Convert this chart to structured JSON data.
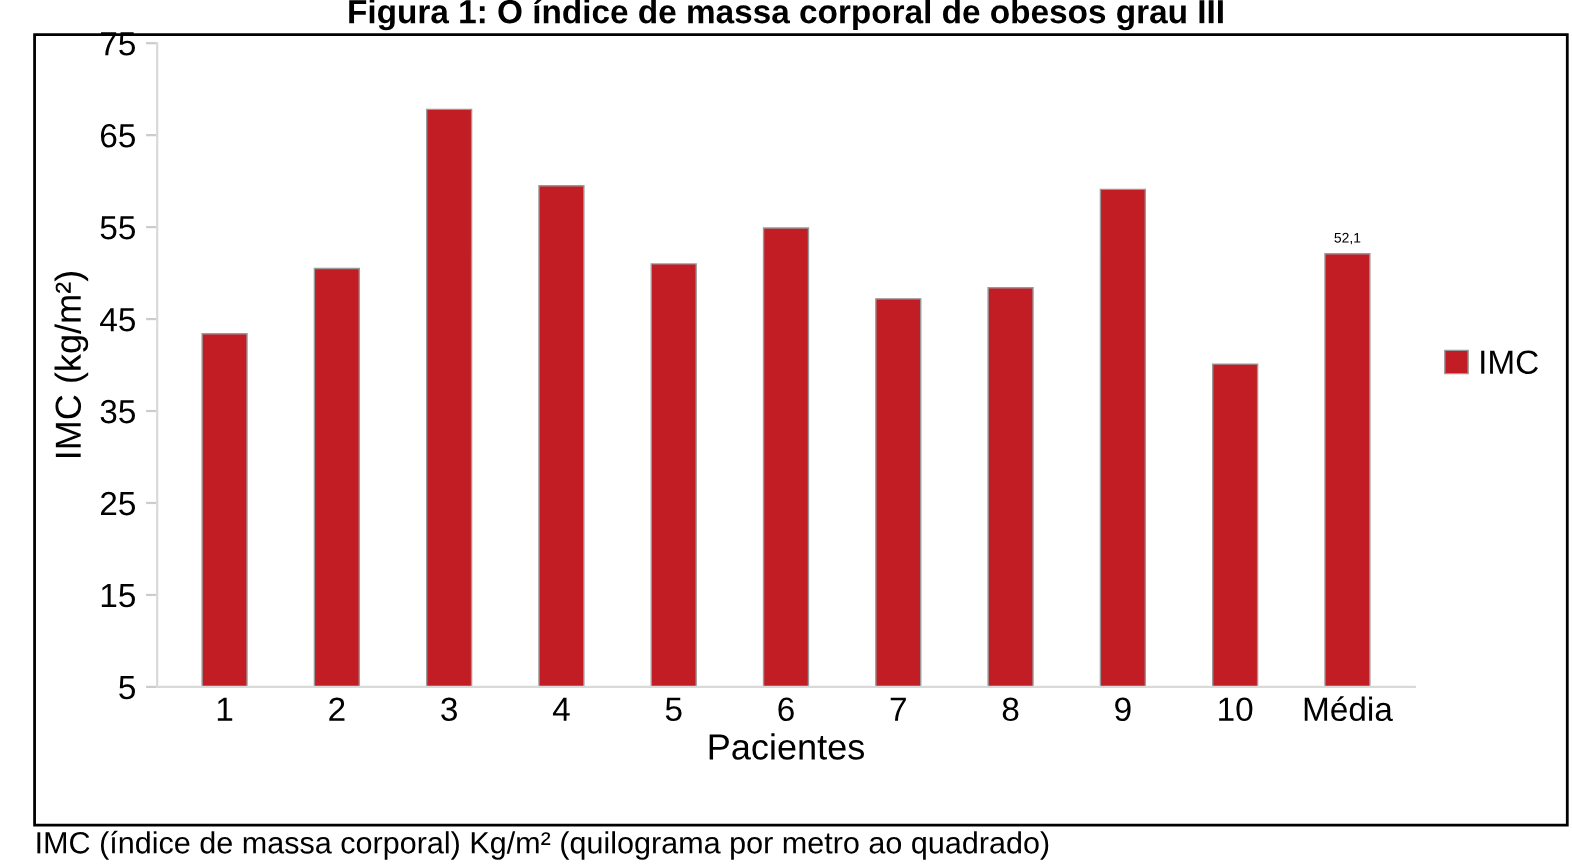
{
  "chart_data": {
    "type": "bar",
    "title": "Figura 1: O índice de massa corporal de obesos grau III",
    "xlabel": "Pacientes",
    "ylabel": "IMC (kg/m²)",
    "categories": [
      "1",
      "2",
      "3",
      "4",
      "5",
      "6",
      "7",
      "8",
      "9",
      "10",
      "Média"
    ],
    "series": [
      {
        "name": "IMC",
        "color": "#c21d24",
        "values": [
          43.4,
          50.5,
          67.8,
          59.5,
          51.0,
          54.9,
          47.2,
          48.4,
          59.1,
          40.1,
          52.1
        ],
        "value_labels": [
          null,
          null,
          null,
          null,
          null,
          null,
          null,
          null,
          null,
          null,
          "52,1"
        ]
      }
    ],
    "ylim": [
      5,
      75
    ],
    "yticks": [
      5,
      15,
      25,
      35,
      45,
      55,
      65,
      75
    ],
    "grid": false,
    "legend": "right",
    "annotations": [
      "IMC (índice de massa corporal) Kg/m² (quilograma por metro ao quadrado)"
    ]
  }
}
